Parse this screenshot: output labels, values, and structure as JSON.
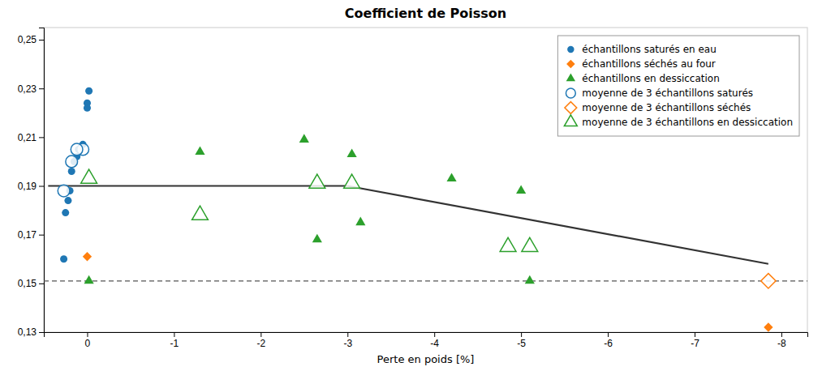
{
  "chart_data": {
    "type": "scatter",
    "title": "Coefficient de Poisson",
    "x_label": "Perte en poids  [%]",
    "xlim": [
      0.5,
      -8.3
    ],
    "ylim": [
      0.13,
      0.255
    ],
    "xticks": [
      0,
      -1,
      -2,
      -3,
      -4,
      -5,
      -6,
      -7,
      -8
    ],
    "yticks": [
      {
        "value": 0.13,
        "label": "0,13"
      },
      {
        "value": 0.15,
        "label": "0,15"
      },
      {
        "value": 0.17,
        "label": "0,17"
      },
      {
        "value": 0.19,
        "label": "0,19"
      },
      {
        "value": 0.21,
        "label": "0,21"
      },
      {
        "value": 0.23,
        "label": "0,23"
      },
      {
        "value": 0.25,
        "label": "0,25"
      }
    ],
    "grid": false,
    "legend": "upper right",
    "series": [
      {
        "name": "échantillons saturés en eau",
        "type": "scatter",
        "marker": "circle",
        "x": [
          -0.02,
          0.0,
          0.0,
          0.05,
          0.1,
          0.12,
          0.15,
          0.18,
          0.2,
          0.22,
          0.25,
          0.27
        ],
        "values": [
          0.229,
          0.224,
          0.222,
          0.207,
          0.205,
          0.202,
          0.2,
          0.196,
          0.188,
          0.184,
          0.179,
          0.16
        ]
      },
      {
        "name": "échantillons séchés au four",
        "type": "scatter",
        "marker": "diamond",
        "x": [
          0.0,
          -7.85
        ],
        "values": [
          0.161,
          0.132
        ]
      },
      {
        "name": "échantillons en dessiccation",
        "type": "scatter",
        "marker": "triangle",
        "x": [
          -0.02,
          -1.3,
          -2.5,
          -2.65,
          -3.05,
          -3.15,
          -4.2,
          -5.0,
          -5.1
        ],
        "values": [
          0.151,
          0.204,
          0.209,
          0.168,
          0.203,
          0.175,
          0.193,
          0.188,
          0.151
        ]
      },
      {
        "name": "moyenne de 3 échantillons saturés",
        "type": "scatter",
        "marker": "open-circle",
        "x": [
          0.05,
          0.12,
          0.18,
          0.27
        ],
        "values": [
          0.205,
          0.205,
          0.2,
          0.188
        ]
      },
      {
        "name": "moyenne de 3 échantillons séchés",
        "type": "scatter",
        "marker": "open-diamond",
        "x": [
          -7.85
        ],
        "values": [
          0.151
        ]
      },
      {
        "name": "moyenne de 3 échantillons en dessiccation",
        "type": "scatter",
        "marker": "open-triangle",
        "x": [
          -0.02,
          -1.3,
          -2.65,
          -3.05,
          -4.85,
          -5.1
        ],
        "values": [
          0.193,
          0.178,
          0.191,
          0.191,
          0.165,
          0.165
        ]
      },
      {
        "type": "line",
        "line_style": "solid",
        "x": [
          -3.0,
          0.45
        ],
        "values": [
          0.19,
          0.19
        ]
      },
      {
        "type": "line",
        "line_style": "solid",
        "x": [
          -3.0,
          -7.85
        ],
        "values": [
          0.19,
          0.158
        ]
      }
    ],
    "reference_lines": [
      {
        "y": 0.151,
        "line_style": "dashed"
      }
    ]
  }
}
